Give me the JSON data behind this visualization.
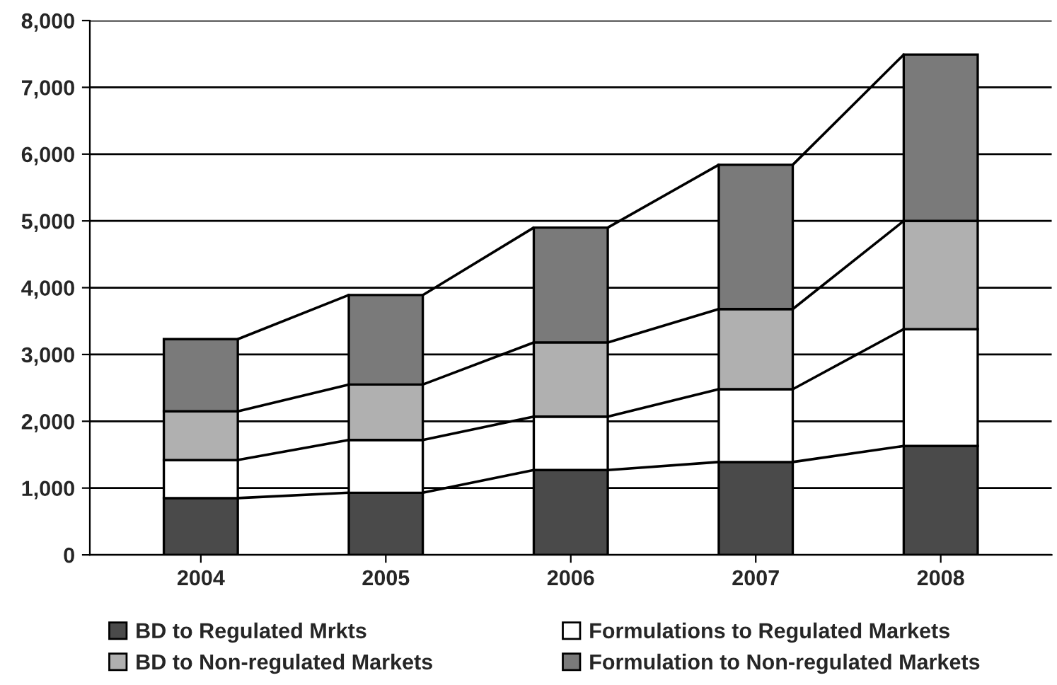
{
  "chart_data": {
    "type": "bar",
    "stacked": true,
    "categories": [
      "2004",
      "2005",
      "2006",
      "2007",
      "2008"
    ],
    "series": [
      {
        "name": "BD to Regulated Mrkts",
        "color": "#4a4a4a",
        "values": [
          850,
          930,
          1270,
          1390,
          1630
        ]
      },
      {
        "name": "Formulations to Regulated Markets",
        "color": "#ffffff",
        "values": [
          570,
          790,
          800,
          1090,
          1750
        ]
      },
      {
        "name": "BD to Non-regulated Markets",
        "color": "#b0b0b0",
        "values": [
          730,
          830,
          1110,
          1200,
          1620
        ]
      },
      {
        "name": "Formulation to Non-regulated Markets",
        "color": "#7a7a7a",
        "values": [
          1080,
          1340,
          1720,
          2160,
          2490
        ]
      }
    ],
    "ylim": [
      0,
      8000
    ],
    "yticks": [
      {
        "value": 0,
        "label": "0"
      },
      {
        "value": 1000,
        "label": "1,000"
      },
      {
        "value": 2000,
        "label": "2,000"
      },
      {
        "value": 3000,
        "label": "3,000"
      },
      {
        "value": 4000,
        "label": "4,000"
      },
      {
        "value": 5000,
        "label": "5,000"
      },
      {
        "value": 6000,
        "label": "6,000"
      },
      {
        "value": 7000,
        "label": "7,000"
      },
      {
        "value": 8000,
        "label": "8,000"
      }
    ],
    "grid": "y",
    "legend": "bottom"
  }
}
